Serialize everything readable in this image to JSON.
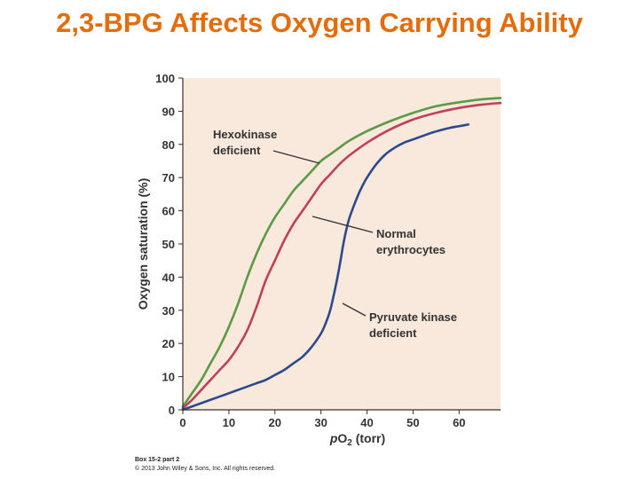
{
  "slide": {
    "title": "2,3-BPG Affects Oxygen Carrying Ability"
  },
  "chart_data": {
    "type": "line",
    "xlabel_italic": "p",
    "xlabel_rest": "O",
    "xlabel_sub": "2",
    "xlabel_unit": " (torr)",
    "ylabel": "Oxygen saturation (%)",
    "xlim": [
      0,
      69
    ],
    "ylim": [
      0,
      100
    ],
    "x_ticks": [
      0,
      10,
      20,
      30,
      40,
      50,
      60
    ],
    "y_ticks": [
      0,
      10,
      20,
      30,
      40,
      50,
      60,
      70,
      80,
      90,
      100
    ],
    "grid": false,
    "plot_background": "#f9e8dc",
    "series": [
      {
        "name": "Hexokinase deficient",
        "color": "#5b9a45",
        "points": [
          [
            0,
            1
          ],
          [
            2,
            5
          ],
          [
            4,
            9
          ],
          [
            6,
            14
          ],
          [
            8,
            19
          ],
          [
            10,
            25
          ],
          [
            12,
            32
          ],
          [
            14,
            40
          ],
          [
            16,
            47
          ],
          [
            18,
            53
          ],
          [
            20,
            58
          ],
          [
            22,
            62
          ],
          [
            24,
            66
          ],
          [
            26,
            69
          ],
          [
            28,
            72
          ],
          [
            30,
            75
          ],
          [
            32,
            77
          ],
          [
            34,
            79
          ],
          [
            36,
            81
          ],
          [
            40,
            84
          ],
          [
            45,
            87
          ],
          [
            50,
            89.5
          ],
          [
            55,
            91.5
          ],
          [
            60,
            92.7
          ],
          [
            65,
            93.6
          ],
          [
            69,
            94
          ]
        ]
      },
      {
        "name": "Normal erythrocytes",
        "color": "#c0405a",
        "points": [
          [
            0,
            0.5
          ],
          [
            2,
            3
          ],
          [
            4,
            6
          ],
          [
            6,
            9
          ],
          [
            8,
            12
          ],
          [
            10,
            15
          ],
          [
            12,
            19
          ],
          [
            14,
            24
          ],
          [
            16,
            31
          ],
          [
            18,
            39
          ],
          [
            20,
            45
          ],
          [
            22,
            51
          ],
          [
            24,
            56
          ],
          [
            26,
            60
          ],
          [
            28,
            64
          ],
          [
            30,
            68
          ],
          [
            32,
            71
          ],
          [
            34,
            74
          ],
          [
            36,
            76.5
          ],
          [
            40,
            80.5
          ],
          [
            45,
            84.5
          ],
          [
            50,
            87.5
          ],
          [
            55,
            89.5
          ],
          [
            60,
            91
          ],
          [
            65,
            92
          ],
          [
            69,
            92.5
          ]
        ]
      },
      {
        "name": "Pyruvate kinase deficient",
        "color": "#2a4a8c",
        "points": [
          [
            0,
            0
          ],
          [
            2,
            1
          ],
          [
            4,
            2
          ],
          [
            6,
            3
          ],
          [
            8,
            4
          ],
          [
            10,
            5
          ],
          [
            12,
            6
          ],
          [
            14,
            7
          ],
          [
            16,
            8
          ],
          [
            18,
            9
          ],
          [
            20,
            10.5
          ],
          [
            22,
            12
          ],
          [
            24,
            14
          ],
          [
            26,
            16
          ],
          [
            28,
            19
          ],
          [
            30,
            23
          ],
          [
            31,
            26
          ],
          [
            32,
            30
          ],
          [
            33,
            36
          ],
          [
            34,
            43
          ],
          [
            35,
            51
          ],
          [
            36,
            57
          ],
          [
            37,
            61
          ],
          [
            38,
            64.5
          ],
          [
            39,
            67.5
          ],
          [
            40,
            70
          ],
          [
            42,
            74
          ],
          [
            44,
            77
          ],
          [
            46,
            79
          ],
          [
            48,
            80.5
          ],
          [
            50,
            81.5
          ],
          [
            52,
            82.5
          ],
          [
            54,
            83.5
          ],
          [
            56,
            84.3
          ],
          [
            58,
            85
          ],
          [
            60,
            85.5
          ],
          [
            62,
            86
          ]
        ]
      }
    ],
    "annotations": [
      {
        "lines": [
          "Hexokinase",
          "deficient"
        ],
        "target_series": 0
      },
      {
        "lines": [
          "Normal",
          "erythrocytes"
        ],
        "target_series": 1
      },
      {
        "lines": [
          "Pyruvate kinase",
          "deficient"
        ],
        "target_series": 2
      }
    ]
  },
  "footer": {
    "line1": "Box 15-2 part 2",
    "line2": "© 2013 John Wiley & Sons, Inc. All rights reserved."
  }
}
